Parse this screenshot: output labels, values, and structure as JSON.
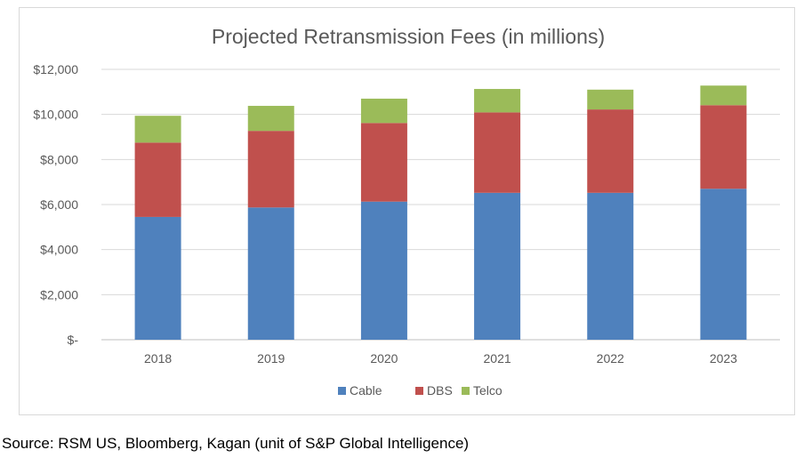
{
  "chart_data": {
    "type": "bar",
    "stacked": true,
    "title": "Projected Retransmission Fees (in millions)",
    "categories": [
      "2018",
      "2019",
      "2020",
      "2021",
      "2022",
      "2023"
    ],
    "series": [
      {
        "name": "Cable",
        "color": "#4f81bd",
        "values": [
          5450,
          5870,
          6130,
          6520,
          6520,
          6700
        ]
      },
      {
        "name": "DBS",
        "color": "#c0504d",
        "values": [
          3300,
          3400,
          3490,
          3570,
          3700,
          3710
        ]
      },
      {
        "name": "Telco",
        "color": "#9bbb59",
        "values": [
          1190,
          1110,
          1080,
          1040,
          880,
          870
        ]
      }
    ],
    "yticks": [
      {
        "value": 0,
        "label": "$-"
      },
      {
        "value": 2000,
        "label": "$2,000"
      },
      {
        "value": 4000,
        "label": "$4,000"
      },
      {
        "value": 6000,
        "label": "$6,000"
      },
      {
        "value": 8000,
        "label": "$8,000"
      },
      {
        "value": 10000,
        "label": "$10,000"
      },
      {
        "value": 12000,
        "label": "$12,000"
      }
    ],
    "ylim": [
      0,
      12000
    ],
    "grid": true,
    "legend": "bottom"
  },
  "source": "Source: RSM US, Bloomberg, Kagan (unit of S&P Global Intelligence)"
}
